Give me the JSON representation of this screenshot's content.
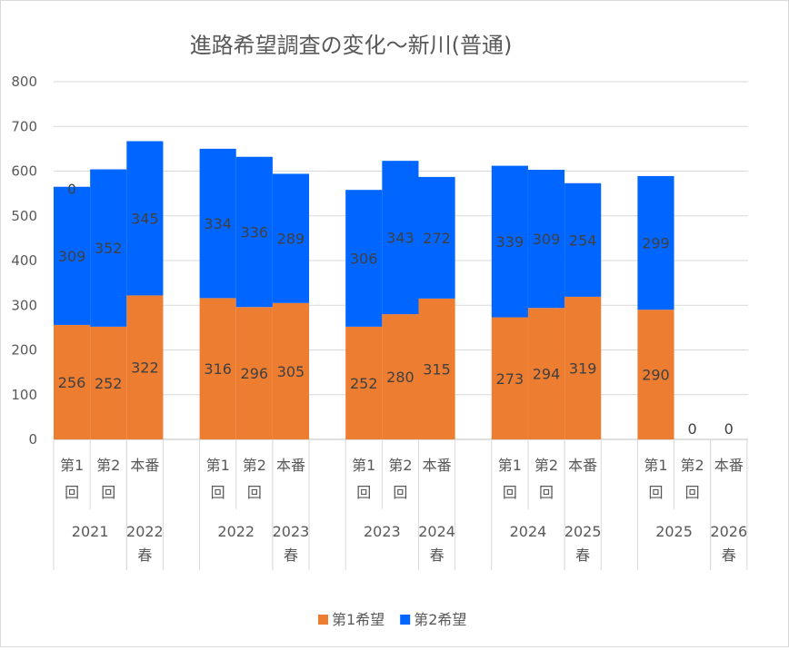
{
  "chart_data": {
    "type": "bar",
    "stacked": true,
    "title": "進路希望調査の変化～新川(普通)",
    "ylim": [
      0,
      800
    ],
    "yticks": [
      0,
      100,
      200,
      300,
      400,
      500,
      600,
      700,
      800
    ],
    "grid": true,
    "legend_position": "bottom",
    "groups": [
      {
        "label": "2021",
        "subs": [
          {
            "label": "第1回"
          },
          {
            "label": "第2回"
          }
        ]
      },
      {
        "label": "2022春",
        "subs": [
          {
            "label": "本番"
          }
        ]
      },
      {
        "label": "2022",
        "subs": [
          {
            "label": "第1回"
          },
          {
            "label": "第2回"
          }
        ]
      },
      {
        "label": "2023春",
        "subs": [
          {
            "label": "本番"
          }
        ]
      },
      {
        "label": "2023",
        "subs": [
          {
            "label": "第1回"
          },
          {
            "label": "第2回"
          }
        ]
      },
      {
        "label": "2024春",
        "subs": [
          {
            "label": "本番"
          }
        ]
      },
      {
        "label": "2024",
        "subs": [
          {
            "label": "第1回"
          },
          {
            "label": "第2回"
          }
        ]
      },
      {
        "label": "2025春",
        "subs": [
          {
            "label": "本番"
          }
        ]
      },
      {
        "label": "2025",
        "subs": [
          {
            "label": "第1回"
          },
          {
            "label": "第2回"
          }
        ]
      },
      {
        "label": "2026春",
        "subs": [
          {
            "label": "本番"
          }
        ]
      }
    ],
    "series": [
      {
        "name": "第1希望",
        "color": "#ED7D31",
        "values": [
          256,
          252,
          322,
          316,
          296,
          305,
          252,
          280,
          315,
          273,
          294,
          319,
          290,
          0,
          0
        ]
      },
      {
        "name": "第2希望",
        "color": "#0066FF",
        "values": [
          309,
          352,
          345,
          334,
          336,
          289,
          306,
          343,
          272,
          339,
          309,
          254,
          299,
          null,
          null
        ]
      }
    ],
    "extra_labels": [
      {
        "index": 0,
        "text": "0"
      }
    ]
  }
}
